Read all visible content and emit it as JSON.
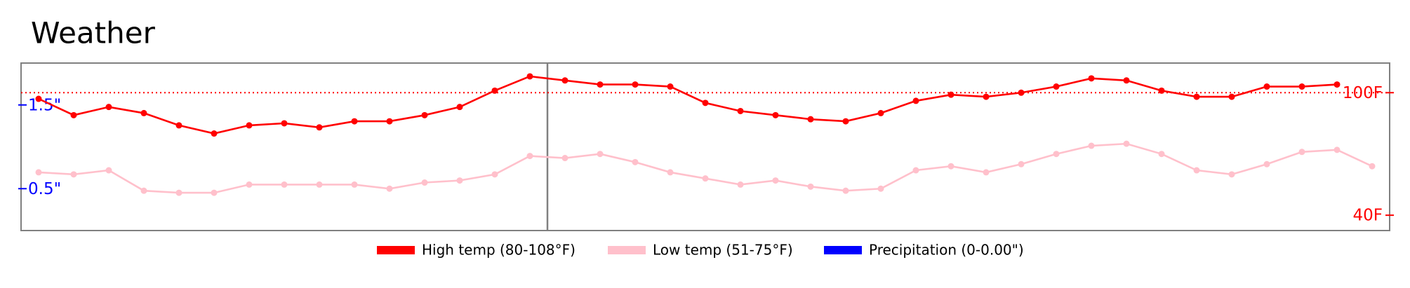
{
  "chart_data": {
    "type": "line",
    "title": "Weather",
    "categories": [
      null,
      null,
      null,
      null,
      null,
      null,
      null,
      null,
      null,
      null,
      null,
      null,
      null,
      null,
      null,
      null,
      null,
      null,
      null,
      null,
      null,
      null,
      null,
      null,
      null,
      null,
      null,
      null,
      null,
      null,
      null,
      null,
      null,
      null,
      null,
      null,
      null,
      null,
      null
    ],
    "series": [
      {
        "name": "High temp (80-108°F)",
        "color": "#ff0000",
        "values": [
          97,
          89,
          93,
          90,
          84,
          80,
          84,
          85,
          83,
          86,
          86,
          89,
          93,
          101,
          108,
          106,
          104,
          104,
          103,
          95,
          91,
          89,
          87,
          86,
          90,
          96,
          99,
          98,
          100,
          103,
          107,
          106,
          101,
          98,
          98,
          103,
          103,
          104,
          null
        ]
      },
      {
        "name": "Low temp (51-75°F)",
        "color": "#ffc0cb",
        "values": [
          61,
          60,
          62,
          52,
          51,
          51,
          55,
          55,
          55,
          55,
          53,
          56,
          57,
          60,
          69,
          68,
          70,
          66,
          61,
          58,
          55,
          57,
          54,
          52,
          53,
          62,
          64,
          61,
          65,
          70,
          74,
          75,
          70,
          62,
          60,
          65,
          71,
          72,
          64
        ]
      },
      {
        "name": "Precipitation (0-0.00\")",
        "color": "#0000ff",
        "axis": "y2",
        "values": [
          0,
          0,
          0,
          0,
          0,
          0,
          0,
          0,
          0,
          0,
          0,
          0,
          0,
          0,
          0,
          0,
          0,
          0,
          0,
          0,
          0,
          0,
          0,
          0,
          0,
          0,
          0,
          0,
          0,
          0,
          0,
          0,
          0,
          0,
          0,
          0,
          0,
          0,
          0
        ]
      }
    ],
    "ylim": [
      32.5,
      114.5
    ],
    "yticks": [
      {
        "value": 100,
        "label": "100F"
      },
      {
        "value": 40,
        "label": "40F"
      }
    ],
    "y2lim": [
      0,
      2
    ],
    "y2ticks": [
      {
        "value": 1.5,
        "label": "1.5\""
      },
      {
        "value": 0.5,
        "label": "0.5\""
      }
    ],
    "hline": 100
  }
}
